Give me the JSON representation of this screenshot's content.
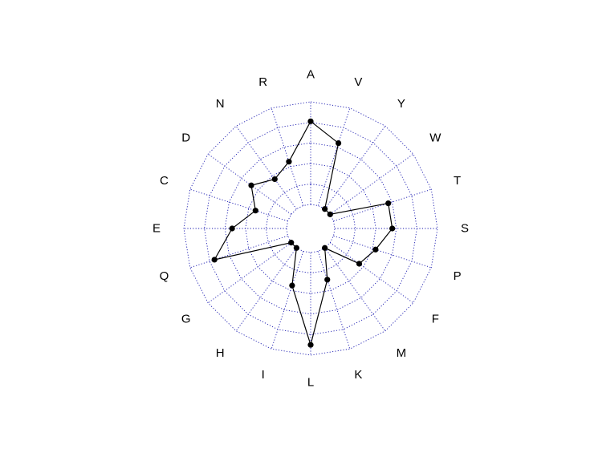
{
  "chart_data": {
    "type": "radar",
    "categories": [
      "A",
      "V",
      "Y",
      "W",
      "T",
      "S",
      "P",
      "F",
      "M",
      "K",
      "L",
      "I",
      "H",
      "G",
      "Q",
      "E",
      "C",
      "D",
      "N",
      "R"
    ],
    "series": [
      {
        "values": [
          0.81,
          0.64,
          0.0,
          0.0,
          0.56,
          0.56,
          0.43,
          0.35,
          0.0,
          0.29,
          0.9,
          0.35,
          0.0,
          0.0,
          0.75,
          0.53,
          0.33,
          0.48,
          0.36,
          0.45
        ]
      }
    ],
    "rlim": [
      0,
      1
    ],
    "grid_rings": 5,
    "grid": true,
    "colors": {
      "grid": "#1a1ab0",
      "series": "#000000",
      "points": "#000000"
    }
  }
}
